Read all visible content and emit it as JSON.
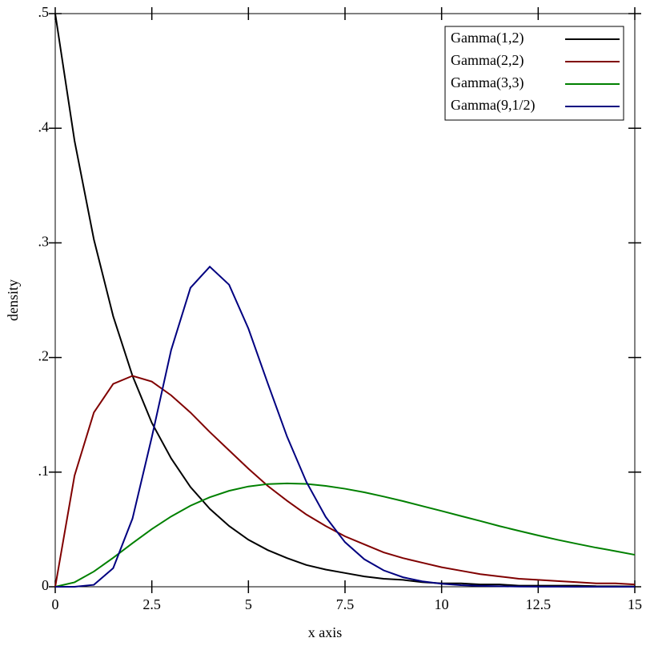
{
  "chart_data": {
    "type": "line",
    "xlabel": "x axis",
    "ylabel": "density",
    "x": [
      0,
      0.5,
      1,
      1.5,
      2,
      2.5,
      3,
      3.5,
      4,
      4.5,
      5,
      5.5,
      6,
      6.5,
      7,
      7.5,
      8,
      8.5,
      9,
      9.5,
      10,
      10.5,
      11,
      11.5,
      12,
      12.5,
      13,
      13.5,
      14,
      14.5,
      15
    ],
    "series": [
      {
        "name": "Gamma(1,2)",
        "color": "#000000",
        "values": [
          0.5,
          0.389,
          0.303,
          0.236,
          0.184,
          0.143,
          0.112,
          0.087,
          0.068,
          0.053,
          0.041,
          0.032,
          0.025,
          0.019,
          0.015,
          0.012,
          0.009,
          0.007,
          0.006,
          0.004,
          0.003,
          0.003,
          0.002,
          0.002,
          0.001,
          0.001,
          0.001,
          0.001,
          0.0005,
          0.0004,
          0.0003
        ]
      },
      {
        "name": "Gamma(2,2)",
        "color": "#800000",
        "values": [
          0,
          0.097,
          0.152,
          0.177,
          0.184,
          0.179,
          0.167,
          0.152,
          0.135,
          0.119,
          0.103,
          0.088,
          0.075,
          0.063,
          0.053,
          0.044,
          0.037,
          0.03,
          0.025,
          0.021,
          0.017,
          0.014,
          0.011,
          0.009,
          0.007,
          0.006,
          0.005,
          0.004,
          0.003,
          0.003,
          0.002
        ]
      },
      {
        "name": "Gamma(3,3)",
        "color": "#008000",
        "values": [
          0,
          0.0039,
          0.0133,
          0.0253,
          0.038,
          0.0503,
          0.0613,
          0.0707,
          0.0781,
          0.0837,
          0.0875,
          0.0896,
          0.0902,
          0.0897,
          0.088,
          0.0855,
          0.0824,
          0.0787,
          0.0747,
          0.0704,
          0.0661,
          0.0617,
          0.0574,
          0.0529,
          0.0488,
          0.0448,
          0.041,
          0.0375,
          0.0341,
          0.0311,
          0.0279
        ]
      },
      {
        "name": "Gamma(9,1/2)",
        "color": "#000080",
        "values": [
          0,
          0,
          0.0017,
          0.0162,
          0.0595,
          0.1306,
          0.2065,
          0.2608,
          0.2792,
          0.2635,
          0.2252,
          0.1775,
          0.131,
          0.0915,
          0.0609,
          0.0389,
          0.024,
          0.0143,
          0.0083,
          0.0047,
          0.0026,
          0.0014,
          0.0008,
          0.0004,
          0.0002,
          0.0001,
          0.0001,
          0,
          0,
          0,
          0
        ]
      }
    ],
    "xlim": [
      0,
      15
    ],
    "xticks": [
      0,
      2.5,
      5,
      7.5,
      10,
      12.5,
      15
    ],
    "ylim": [
      0,
      0.5
    ],
    "yticks": [
      0,
      {
        "value": 0.1,
        "label": ".1"
      },
      {
        "value": 0.2,
        "label": ".2"
      },
      {
        "value": 0.3,
        "label": ".3"
      },
      {
        "value": 0.4,
        "label": ".4"
      },
      {
        "value": 0.5,
        "label": ".5"
      }
    ],
    "legend": "top-right"
  }
}
